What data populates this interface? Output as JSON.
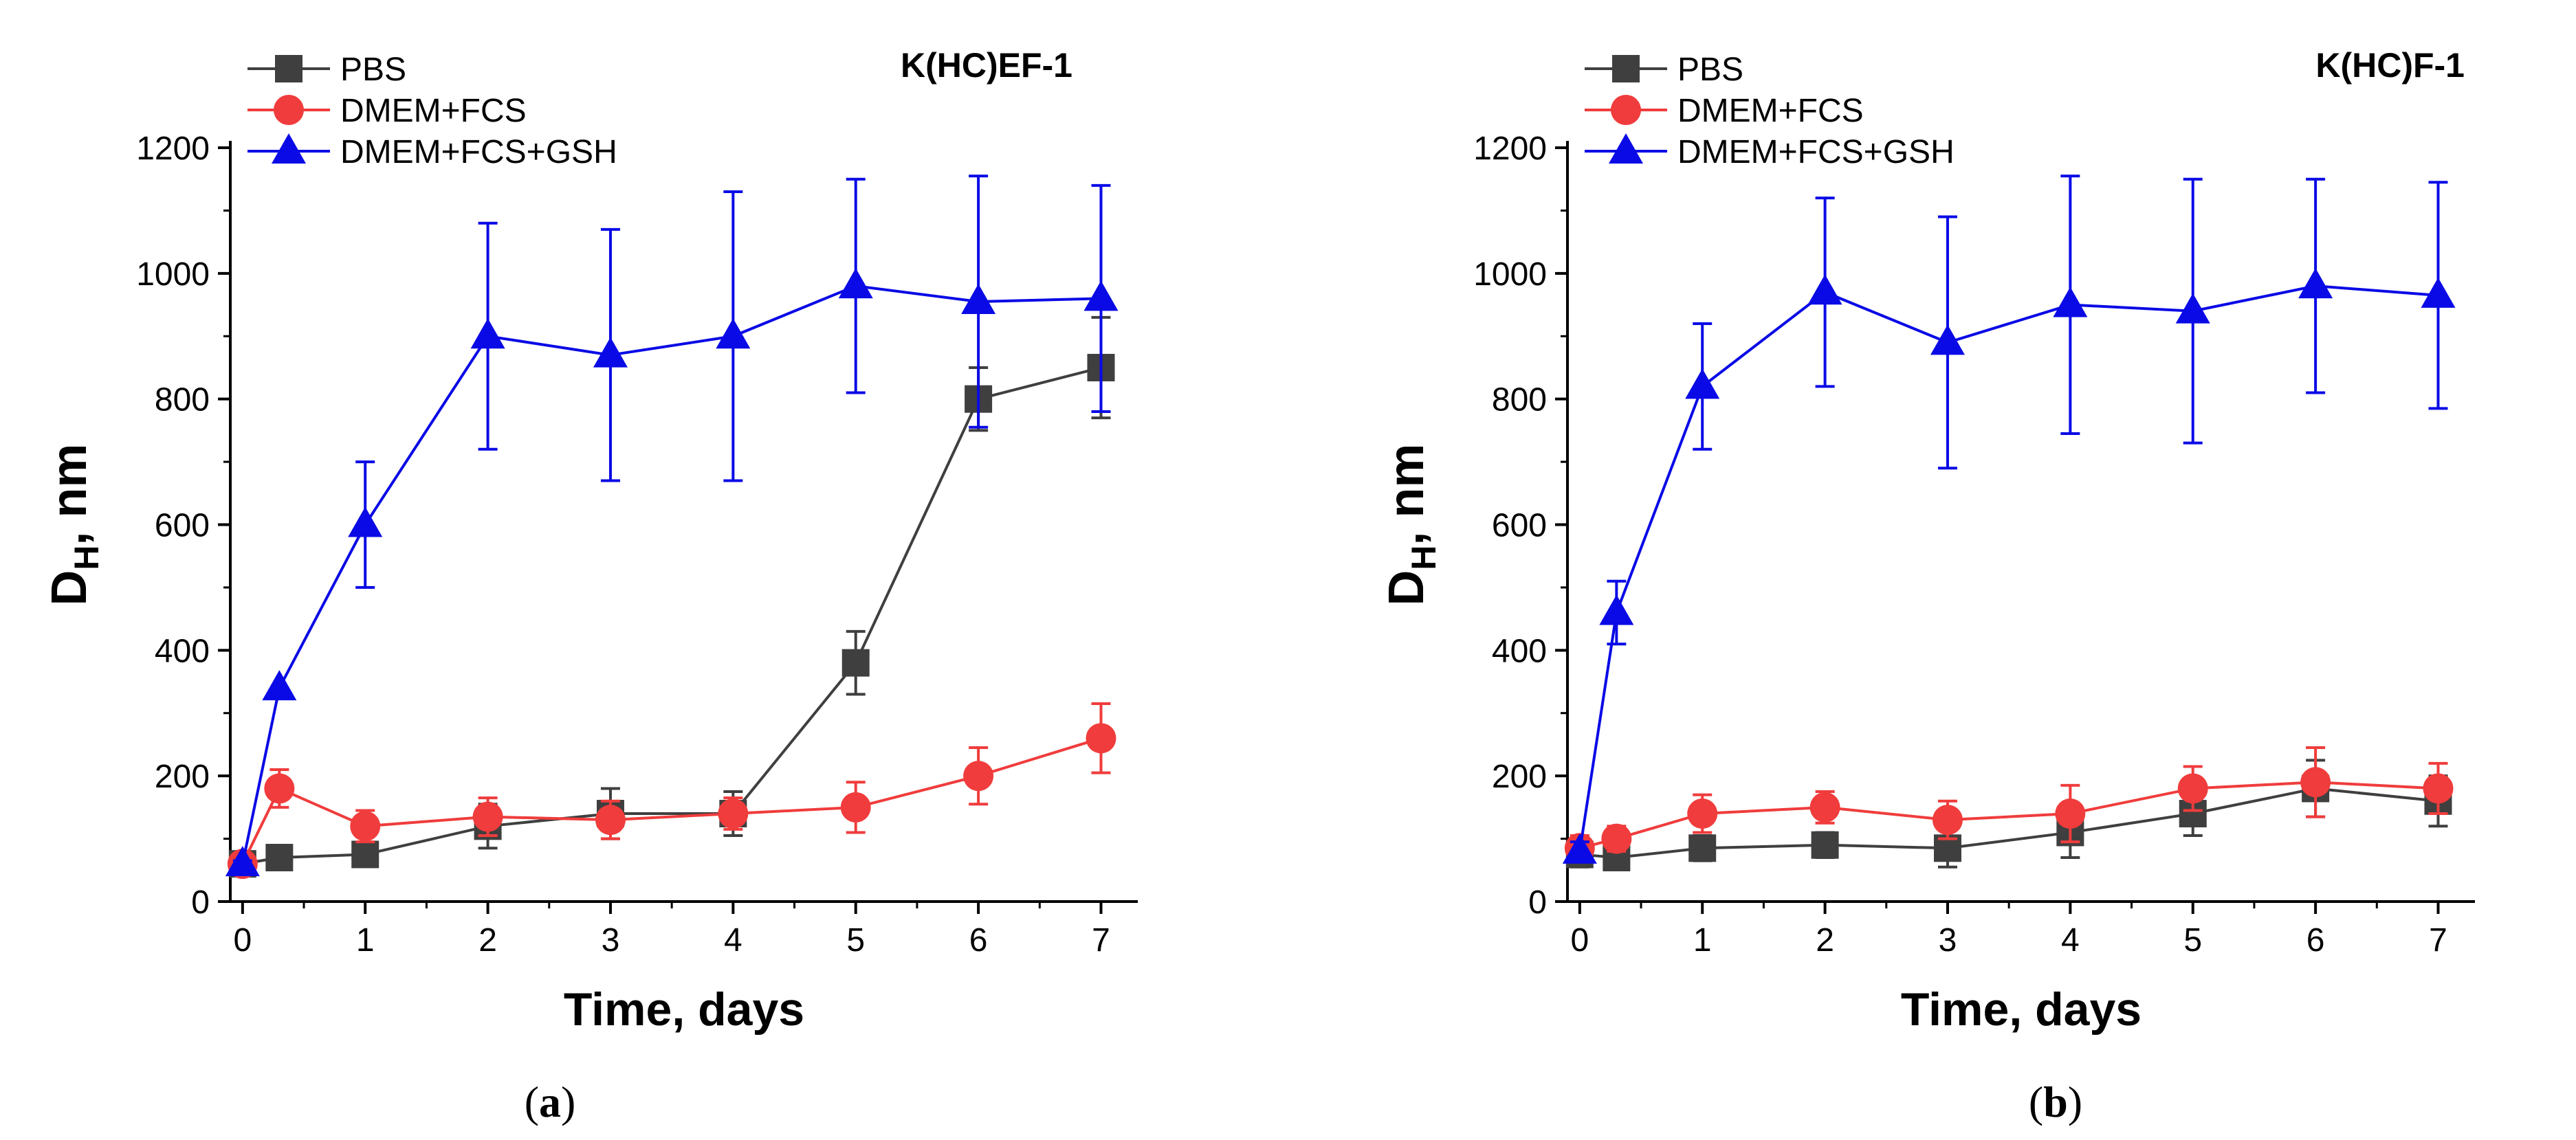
{
  "chart_data": [
    {
      "type": "line",
      "panel": "a",
      "caption_letter": "a",
      "title": "K(HC)EF-1",
      "xlabel": "Time, days",
      "ylabel_main": "D",
      "ylabel_sub": "H",
      "ylabel_rest": ", nm",
      "xlim": [
        -0.1,
        7.3
      ],
      "ylim": [
        0,
        1200
      ],
      "xticks": [
        0,
        1,
        2,
        3,
        4,
        5,
        6,
        7
      ],
      "yticks": [
        0,
        200,
        400,
        600,
        800,
        1000,
        1200
      ],
      "legend_position": "top-left",
      "series": [
        {
          "name": "PBS",
          "color": "#3f3f3f",
          "marker": "square",
          "x": [
            0,
            0.3,
            1,
            2,
            3,
            4,
            5,
            6,
            7
          ],
          "y": [
            60,
            70,
            75,
            120,
            140,
            140,
            380,
            800,
            850
          ],
          "err": [
            10,
            10,
            12,
            35,
            40,
            35,
            50,
            50,
            80
          ]
        },
        {
          "name": "DMEM+FCS",
          "color": "#f03c3c",
          "marker": "circle",
          "x": [
            0,
            0.3,
            1,
            2,
            3,
            4,
            5,
            6,
            7
          ],
          "y": [
            60,
            180,
            120,
            135,
            130,
            140,
            150,
            200,
            260
          ],
          "err": [
            15,
            30,
            25,
            30,
            30,
            25,
            40,
            45,
            55
          ]
        },
        {
          "name": "DMEM+FCS+GSH",
          "color": "#0a0ae6",
          "marker": "triangle",
          "x": [
            0,
            0.3,
            1,
            2,
            3,
            4,
            5,
            6,
            7
          ],
          "y": [
            60,
            340,
            600,
            900,
            870,
            900,
            980,
            955,
            960
          ],
          "err": [
            5,
            0,
            100,
            180,
            200,
            230,
            170,
            200,
            180
          ]
        }
      ]
    },
    {
      "type": "line",
      "panel": "b",
      "caption_letter": "b",
      "title": "K(HC)F-1",
      "xlabel": "Time, days",
      "ylabel_main": "D",
      "ylabel_sub": "H",
      "ylabel_rest": ", nm",
      "xlim": [
        -0.1,
        7.3
      ],
      "ylim": [
        0,
        1200
      ],
      "xticks": [
        0,
        1,
        2,
        3,
        4,
        5,
        6,
        7
      ],
      "yticks": [
        0,
        200,
        400,
        600,
        800,
        1000,
        1200
      ],
      "legend_position": "top-left",
      "series": [
        {
          "name": "PBS",
          "color": "#3f3f3f",
          "marker": "square",
          "x": [
            0,
            0.3,
            1,
            2,
            3,
            4,
            5,
            6,
            7
          ],
          "y": [
            75,
            70,
            85,
            90,
            85,
            110,
            140,
            180,
            160
          ],
          "err": [
            20,
            15,
            20,
            20,
            30,
            40,
            35,
            45,
            40
          ]
        },
        {
          "name": "DMEM+FCS",
          "color": "#f03c3c",
          "marker": "circle",
          "x": [
            0,
            0.3,
            1,
            2,
            3,
            4,
            5,
            6,
            7
          ],
          "y": [
            85,
            100,
            140,
            150,
            130,
            140,
            180,
            190,
            180
          ],
          "err": [
            20,
            20,
            30,
            25,
            30,
            45,
            35,
            55,
            40
          ]
        },
        {
          "name": "DMEM+FCS+GSH",
          "color": "#0a0ae6",
          "marker": "triangle",
          "x": [
            0,
            0.3,
            1,
            2,
            3,
            4,
            5,
            6,
            7
          ],
          "y": [
            80,
            460,
            820,
            970,
            890,
            950,
            940,
            980,
            965
          ],
          "err": [
            15,
            50,
            100,
            150,
            200,
            205,
            210,
            170,
            180
          ]
        }
      ]
    }
  ]
}
